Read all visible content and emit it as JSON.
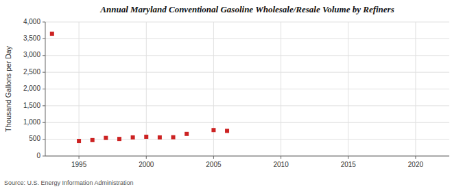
{
  "chart_data": {
    "type": "scatter",
    "title": "Annual Maryland Conventional Gasoline Wholesale/Resale Volume by Refiners",
    "ylabel": "Thousand Gallons per Day",
    "source": "Source: U.S. Energy Information Administration",
    "color": "#cc2222",
    "marker": "square",
    "grid": true,
    "xlim": [
      1992.5,
      2022.5
    ],
    "ylim": [
      0,
      4000
    ],
    "xticks": [
      1995,
      2000,
      2005,
      2010,
      2015,
      2020
    ],
    "yticks": [
      0,
      500,
      {
        "value": 1000,
        "label": "1,000"
      },
      {
        "value": 1500,
        "label": "1,500"
      },
      {
        "value": 2000,
        "label": "2,000"
      },
      {
        "value": 2500,
        "label": "2,500"
      },
      {
        "value": 3000,
        "label": "3,000"
      },
      {
        "value": 3500,
        "label": "3,500"
      },
      {
        "value": 4000,
        "label": "4,000"
      }
    ],
    "x": [
      1993,
      1995,
      1996,
      1997,
      1998,
      1999,
      2000,
      2001,
      2002,
      2003,
      2005,
      2006
    ],
    "values": [
      3650,
      450,
      475,
      540,
      510,
      555,
      575,
      555,
      560,
      660,
      775,
      750
    ]
  }
}
